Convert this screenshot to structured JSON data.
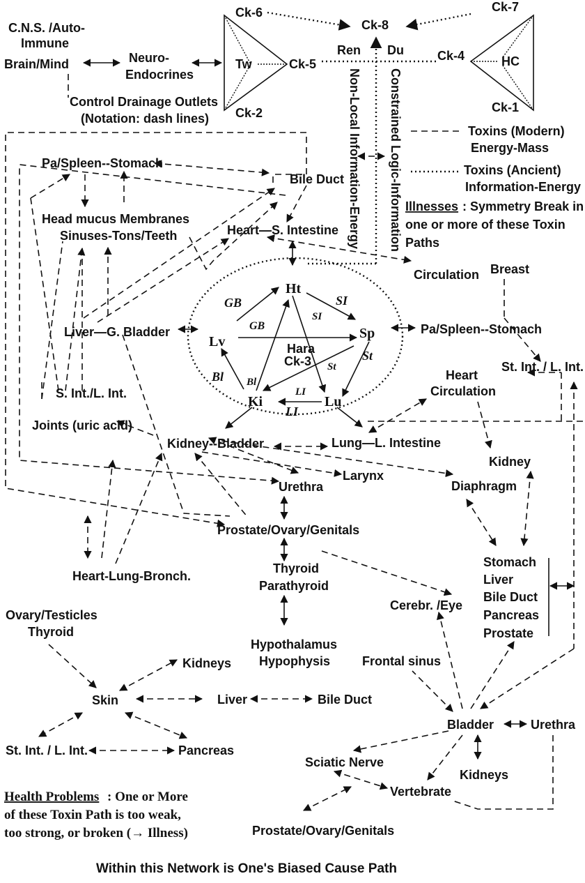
{
  "diagram": {
    "top": {
      "cns": "C.N.S. /Auto-",
      "immune": "Immune",
      "brain_mind": "Brain/Mind",
      "neuro": "Neuro-",
      "endocrines": "Endocrines",
      "control_drainage": "Control Drainage Outlets",
      "notation": "(Notation: dash lines)",
      "tw": "Tw",
      "hc": "HC",
      "ck1": "Ck-1",
      "ck2": "Ck-2",
      "ck4": "Ck-4",
      "ck5": "Ck-5",
      "ck6": "Ck-6",
      "ck7": "Ck-7",
      "ck8": "Ck-8",
      "ren": "Ren",
      "du": "Du",
      "nonlocal": "Non-Local Information-Energy",
      "constrained": "Constrained Logic-Information"
    },
    "legend": {
      "modern_1": "Toxins (Modern)",
      "modern_2": "Energy-Mass",
      "ancient_1": "Toxins (Ancient)",
      "ancient_2": "Information-Energy",
      "illnesses_head": "Illnesses",
      "illnesses_1": ": Symmetry Break in",
      "illnesses_2": "one or more of these Toxin",
      "illnesses_3": "Paths"
    },
    "nodes": {
      "pa_spleen_top": "Pa/Spleen--Stomach",
      "bile_duct_top": "Bile Duct",
      "head_mucus": "Head mucus Membranes",
      "sinuses": "Sinuses-Tons/Teeth",
      "heart_si": "Heart—S. Intestine",
      "circulation": "Circulation",
      "breast": "Breast",
      "liver_gb": "Liver—G. Bladder",
      "pa_spleen_right": "Pa/Spleen--Stomach",
      "st_int_l_int_right": "St. Int. / L. Int.",
      "heart_circ_1": "Heart",
      "heart_circ_2": "Circulation",
      "s_int_l_int": "S. Int./L. Int.",
      "joints": "Joints (uric acid)",
      "kidney_bladder": "Kidney--Bladder",
      "lung_li": "Lung—L. Intestine",
      "larynx": "Larynx",
      "kidney_right": "Kidney",
      "urethra_mid": "Urethra",
      "diaphragm": "Diaphragm",
      "prostate_mid": "Prostate/Ovary/Genitals",
      "heart_lung": "Heart-Lung-Bronch.",
      "thyroid": "Thyroid",
      "parathyroid": "Parathyroid",
      "stomach_list": [
        "Stomach",
        "Liver",
        "Bile Duct",
        "Pancreas",
        "Prostate"
      ],
      "cerebr_eye": "Cerebr. /Eye",
      "ovary_testicles": "Ovary/Testicles",
      "thyroid_left": "Thyroid",
      "hypothalamus": "Hypothalamus",
      "hypophysis": "Hypophysis",
      "frontal_sinus": "Frontal sinus",
      "kidneys_left": "Kidneys",
      "skin": "Skin",
      "liver_bottom": "Liver",
      "bile_duct_bottom": "Bile Duct",
      "bladder": "Bladder",
      "urethra_bottom": "Urethra",
      "st_int_bottom": "St. Int. / L. Int.",
      "pancreas": "Pancreas",
      "sciatic": "Sciatic Nerve",
      "kidneys_bottom": "Kidneys",
      "vertebrate": "Vertebrate",
      "prostate_bottom": "Prostate/Ovary/Genitals"
    },
    "center": {
      "ht": "Ht",
      "lv": "Lv",
      "sp": "Sp",
      "ki": "Ki",
      "lu": "Lu",
      "gb_outer": "GB",
      "gb_inner": "GB",
      "si_outer": "SI",
      "si_inner": "SI",
      "st_outer": "St",
      "st_inner": "St",
      "bl_outer": "Bl",
      "bl_inner": "Bl",
      "li_outer": "LI",
      "li_inner": "LI",
      "hara": "Hara",
      "ck3": "Ck-3"
    },
    "footer": {
      "health_head": "Health Problems",
      "health_1": ": One or More",
      "health_2": "of these Toxin Path is too weak,",
      "health_3": "too strong, or broken (→ Illness)",
      "caption": "Within this Network is One's Biased Cause Path"
    }
  }
}
